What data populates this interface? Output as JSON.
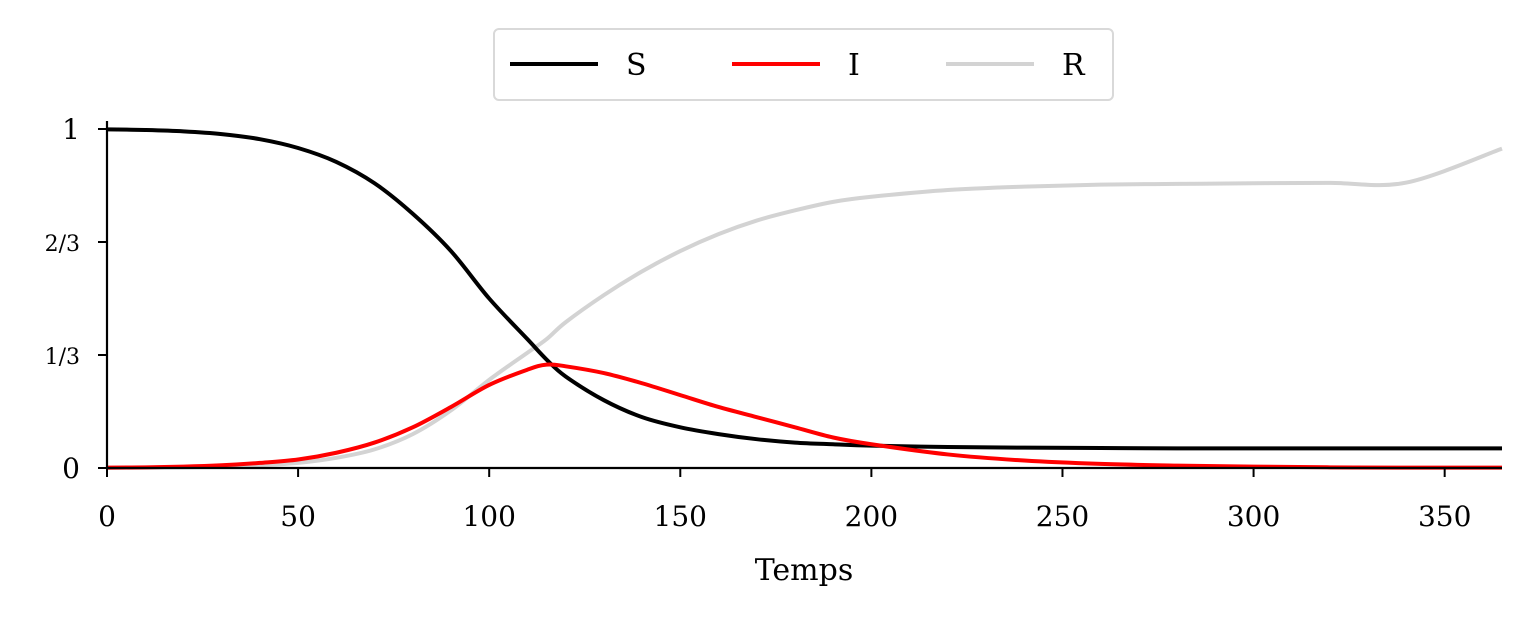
{
  "chart_data": {
    "type": "line",
    "title": "",
    "xlabel": "Temps",
    "ylabel": "",
    "xlim": [
      0,
      365
    ],
    "ylim": [
      0,
      1
    ],
    "x_ticks": [
      0,
      50,
      100,
      150,
      200,
      250,
      300,
      350
    ],
    "y_ticks": [
      {
        "value": 0,
        "label": "0"
      },
      {
        "value": 0.3333,
        "label": "1/3"
      },
      {
        "value": 0.6667,
        "label": "2/3"
      },
      {
        "value": 1,
        "label": "1"
      }
    ],
    "grid": false,
    "legend_position": "top-center",
    "x": [
      0,
      10,
      20,
      30,
      40,
      50,
      60,
      70,
      80,
      90,
      100,
      110,
      115,
      120,
      130,
      140,
      150,
      160,
      170,
      180,
      190,
      200,
      220,
      240,
      260,
      280,
      300,
      320,
      340,
      365
    ],
    "series": [
      {
        "name": "S",
        "color": "#000000",
        "values": [
          0.999,
          0.997,
          0.993,
          0.985,
          0.97,
          0.944,
          0.903,
          0.84,
          0.75,
          0.64,
          0.5,
          0.38,
          0.32,
          0.27,
          0.2,
          0.15,
          0.12,
          0.1,
          0.085,
          0.075,
          0.07,
          0.066,
          0.062,
          0.06,
          0.059,
          0.058,
          0.058,
          0.058,
          0.058,
          0.058
        ]
      },
      {
        "name": "I",
        "color": "#ff0000",
        "values": [
          0.001,
          0.002,
          0.004,
          0.008,
          0.015,
          0.025,
          0.045,
          0.075,
          0.12,
          0.18,
          0.245,
          0.29,
          0.305,
          0.3,
          0.28,
          0.25,
          0.215,
          0.18,
          0.15,
          0.12,
          0.09,
          0.07,
          0.04,
          0.022,
          0.012,
          0.007,
          0.004,
          0.002,
          0.001,
          0.001
        ]
      },
      {
        "name": "R",
        "color": "#d3d3d3",
        "values": [
          0.0,
          0.001,
          0.002,
          0.004,
          0.008,
          0.015,
          0.03,
          0.055,
          0.1,
          0.17,
          0.26,
          0.34,
          0.38,
          0.43,
          0.51,
          0.58,
          0.64,
          0.69,
          0.73,
          0.76,
          0.785,
          0.8,
          0.82,
          0.83,
          0.836,
          0.838,
          0.84,
          0.841,
          0.842,
          0.942
        ]
      }
    ]
  }
}
